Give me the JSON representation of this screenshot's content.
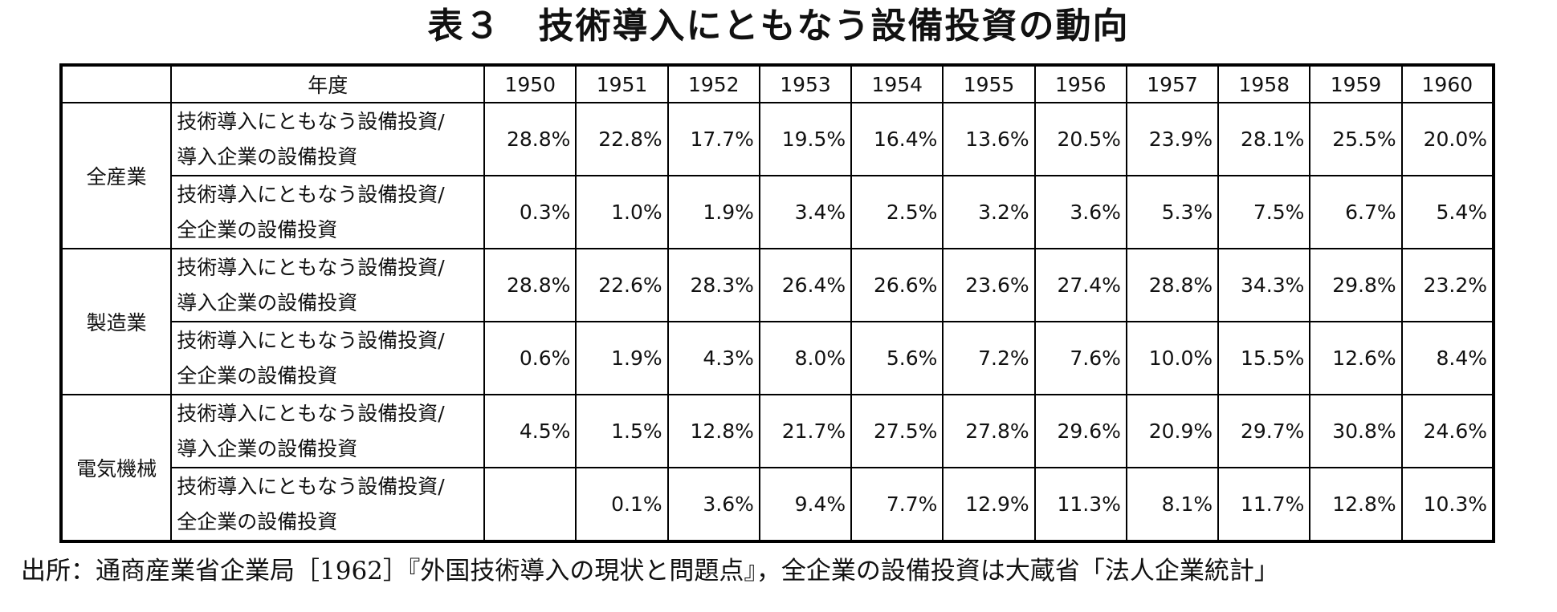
{
  "title": "表３　技術導入にともなう設備投資の動向",
  "table": {
    "year_header": "年度",
    "years": [
      "1950",
      "1951",
      "1952",
      "1953",
      "1954",
      "1955",
      "1956",
      "1957",
      "1958",
      "1959",
      "1960"
    ],
    "groups": [
      {
        "name": "全産業",
        "rows": [
          {
            "desc_line1": "技術導入にともなう設備投資/",
            "desc_line2": "導入企業の設備投資",
            "values": [
              "28.8%",
              "22.8%",
              "17.7%",
              "19.5%",
              "16.4%",
              "13.6%",
              "20.5%",
              "23.9%",
              "28.1%",
              "25.5%",
              "20.0%"
            ]
          },
          {
            "desc_line1": "技術導入にともなう設備投資/",
            "desc_line2": "全企業の設備投資",
            "values": [
              "0.3%",
              "1.0%",
              "1.9%",
              "3.4%",
              "2.5%",
              "3.2%",
              "3.6%",
              "5.3%",
              "7.5%",
              "6.7%",
              "5.4%"
            ]
          }
        ]
      },
      {
        "name": "製造業",
        "rows": [
          {
            "desc_line1": "技術導入にともなう設備投資/",
            "desc_line2": "導入企業の設備投資",
            "values": [
              "28.8%",
              "22.6%",
              "28.3%",
              "26.4%",
              "26.6%",
              "23.6%",
              "27.4%",
              "28.8%",
              "34.3%",
              "29.8%",
              "23.2%"
            ]
          },
          {
            "desc_line1": "技術導入にともなう設備投資/",
            "desc_line2": "全企業の設備投資",
            "values": [
              "0.6%",
              "1.9%",
              "4.3%",
              "8.0%",
              "5.6%",
              "7.2%",
              "7.6%",
              "10.0%",
              "15.5%",
              "12.6%",
              "8.4%"
            ]
          }
        ]
      },
      {
        "name": "電気機械",
        "rows": [
          {
            "desc_line1": "技術導入にともなう設備投資/",
            "desc_line2": "導入企業の設備投資",
            "values": [
              "4.5%",
              "1.5%",
              "12.8%",
              "21.7%",
              "27.5%",
              "27.8%",
              "29.6%",
              "20.9%",
              "29.7%",
              "30.8%",
              "24.6%"
            ]
          },
          {
            "desc_line1": "技術導入にともなう設備投資/",
            "desc_line2": "全企業の設備投資",
            "values": [
              "",
              "0.1%",
              "3.6%",
              "9.4%",
              "7.7%",
              "12.9%",
              "11.3%",
              "8.1%",
              "11.7%",
              "12.8%",
              "10.3%"
            ]
          }
        ]
      }
    ]
  },
  "source": "出所：通商産業省企業局［1962］『外国技術導入の現状と問題点』，全企業の設備投資は大蔵省「法人企業統計」"
}
